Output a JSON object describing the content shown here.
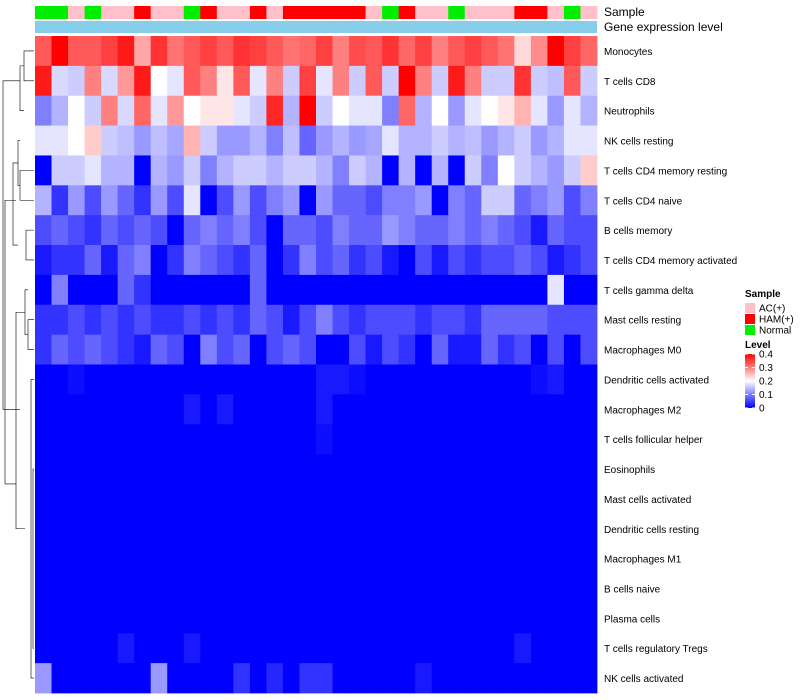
{
  "chart_data": {
    "type": "heatmap",
    "title": "",
    "annotation_tracks": [
      "Sample",
      "Gene expression level"
    ],
    "rows": [
      "Monocytes",
      "T cells CD8",
      "Neutrophils",
      "NK cells resting",
      "T cells CD4 memory resting",
      "T cells CD4 naive",
      "B cells memory",
      "T cells CD4 memory activated",
      "T cells gamma delta",
      "Mast cells resting",
      "Macrophages M0",
      "Dendritic cells activated",
      "Macrophages M2",
      "T cells follicular helper",
      "Eosinophils",
      "Mast cells activated",
      "Dendritic cells resting",
      "Macrophages M1",
      "B cells naive",
      "Plasma cells",
      "T cells regulatory  Tregs",
      "NK cells activated"
    ],
    "sample_groups": [
      "Normal",
      "Normal",
      "AC(+)",
      "Normal",
      "AC(+)",
      "AC(+)",
      "HAM(+)",
      "AC(+)",
      "AC(+)",
      "Normal",
      "HAM(+)",
      "AC(+)",
      "AC(+)",
      "HAM(+)",
      "AC(+)",
      "HAM(+)",
      "HAM(+)",
      "HAM(+)",
      "HAM(+)",
      "HAM(+)",
      "AC(+)",
      "Normal",
      "HAM(+)",
      "AC(+)",
      "AC(+)",
      "Normal",
      "AC(+)",
      "AC(+)",
      "AC(+)",
      "HAM(+)",
      "HAM(+)",
      "AC(+)",
      "Normal",
      "AC(+)"
    ],
    "values": [
      [
        0.33,
        0.4,
        0.33,
        0.33,
        0.35,
        0.38,
        0.27,
        0.36,
        0.31,
        0.33,
        0.35,
        0.33,
        0.36,
        0.35,
        0.33,
        0.31,
        0.32,
        0.35,
        0.3,
        0.34,
        0.33,
        0.36,
        0.32,
        0.35,
        0.3,
        0.33,
        0.35,
        0.33,
        0.31,
        0.23,
        0.29,
        0.4,
        0.35,
        0.32
      ],
      [
        0.38,
        0.17,
        0.16,
        0.3,
        0.17,
        0.28,
        0.38,
        0.2,
        0.18,
        0.33,
        0.3,
        0.22,
        0.33,
        0.18,
        0.3,
        0.16,
        0.35,
        0.18,
        0.3,
        0.16,
        0.33,
        0.16,
        0.4,
        0.3,
        0.16,
        0.38,
        0.3,
        0.16,
        0.16,
        0.36,
        0.16,
        0.15,
        0.33,
        0.16
      ],
      [
        0.1,
        0.14,
        0.2,
        0.16,
        0.3,
        0.17,
        0.32,
        0.18,
        0.28,
        0.2,
        0.22,
        0.22,
        0.18,
        0.16,
        0.37,
        0.14,
        0.42,
        0.16,
        0.2,
        0.18,
        0.18,
        0.1,
        0.32,
        0.14,
        0.2,
        0.12,
        0.18,
        0.2,
        0.22,
        0.26,
        0.18,
        0.12,
        0.18,
        0.14
      ],
      [
        0.18,
        0.18,
        0.2,
        0.24,
        0.16,
        0.15,
        0.12,
        0.15,
        0.13,
        0.26,
        0.16,
        0.12,
        0.12,
        0.14,
        0.1,
        0.15,
        0.08,
        0.12,
        0.14,
        0.12,
        0.13,
        0.18,
        0.14,
        0.14,
        0.16,
        0.14,
        0.15,
        0.12,
        0.14,
        0.16,
        0.12,
        0.14,
        0.18,
        0.18
      ],
      [
        0.0,
        0.16,
        0.16,
        0.18,
        0.14,
        0.14,
        0.0,
        0.14,
        0.12,
        0.16,
        0.1,
        0.14,
        0.16,
        0.16,
        0.14,
        0.16,
        0.16,
        0.14,
        0.1,
        0.16,
        0.14,
        0.0,
        0.14,
        0.0,
        0.14,
        0.0,
        0.16,
        0.1,
        0.2,
        0.16,
        0.14,
        0.12,
        0.16,
        0.24
      ],
      [
        0.14,
        0.04,
        0.12,
        0.06,
        0.12,
        0.08,
        0.04,
        0.12,
        0.06,
        0.18,
        0.0,
        0.06,
        0.12,
        0.06,
        0.1,
        0.12,
        0.0,
        0.12,
        0.08,
        0.08,
        0.06,
        0.1,
        0.1,
        0.12,
        0.0,
        0.1,
        0.08,
        0.16,
        0.16,
        0.08,
        0.1,
        0.12,
        0.06,
        0.1
      ],
      [
        0.06,
        0.08,
        0.06,
        0.04,
        0.08,
        0.06,
        0.08,
        0.06,
        0.0,
        0.08,
        0.1,
        0.08,
        0.1,
        0.06,
        0.0,
        0.08,
        0.08,
        0.06,
        0.1,
        0.08,
        0.08,
        0.12,
        0.1,
        0.08,
        0.08,
        0.1,
        0.08,
        0.1,
        0.08,
        0.06,
        0.02,
        0.08,
        0.06,
        0.06
      ],
      [
        0.02,
        0.04,
        0.04,
        0.08,
        0.02,
        0.08,
        0.1,
        0.0,
        0.04,
        0.1,
        0.08,
        0.06,
        0.04,
        0.08,
        0.0,
        0.04,
        0.1,
        0.06,
        0.08,
        0.04,
        0.06,
        0.02,
        0.0,
        0.06,
        0.02,
        0.06,
        0.04,
        0.06,
        0.06,
        0.08,
        0.06,
        0.02,
        0.04,
        0.06
      ],
      [
        0.0,
        0.1,
        0.0,
        0.0,
        0.0,
        0.08,
        0.04,
        0.0,
        0.0,
        0.0,
        0.0,
        0.0,
        0.0,
        0.08,
        0.0,
        0.0,
        0.0,
        0.0,
        0.0,
        0.0,
        0.0,
        0.0,
        0.0,
        0.0,
        0.0,
        0.0,
        0.0,
        0.0,
        0.0,
        0.0,
        0.0,
        0.18,
        0.0,
        0.0
      ],
      [
        0.04,
        0.04,
        0.06,
        0.04,
        0.06,
        0.04,
        0.06,
        0.04,
        0.04,
        0.06,
        0.04,
        0.06,
        0.04,
        0.08,
        0.06,
        0.02,
        0.06,
        0.1,
        0.06,
        0.04,
        0.06,
        0.06,
        0.06,
        0.04,
        0.06,
        0.06,
        0.04,
        0.08,
        0.08,
        0.08,
        0.08,
        0.06,
        0.06,
        0.06
      ],
      [
        0.04,
        0.08,
        0.06,
        0.08,
        0.06,
        0.04,
        0.02,
        0.08,
        0.06,
        0.0,
        0.1,
        0.06,
        0.08,
        0.0,
        0.06,
        0.08,
        0.06,
        0.0,
        0.0,
        0.06,
        0.02,
        0.06,
        0.04,
        0.0,
        0.08,
        0.02,
        0.02,
        0.08,
        0.04,
        0.06,
        0.0,
        0.06,
        0.0,
        0.06
      ],
      [
        0.0,
        0.0,
        0.01,
        0.0,
        0.0,
        0.0,
        0.0,
        0.0,
        0.0,
        0.0,
        0.0,
        0.0,
        0.0,
        0.0,
        0.0,
        0.0,
        0.0,
        0.02,
        0.02,
        0.01,
        0.0,
        0.0,
        0.0,
        0.0,
        0.0,
        0.0,
        0.0,
        0.0,
        0.0,
        0.0,
        0.01,
        0.02,
        0.0,
        0.0
      ],
      [
        0.0,
        0.0,
        0.0,
        0.0,
        0.0,
        0.0,
        0.0,
        0.0,
        0.0,
        0.02,
        0.0,
        0.02,
        0.0,
        0.0,
        0.0,
        0.0,
        0.0,
        0.02,
        0.0,
        0.0,
        0.0,
        0.0,
        0.0,
        0.0,
        0.0,
        0.0,
        0.0,
        0.0,
        0.0,
        0.0,
        0.0,
        0.0,
        0.0,
        0.0
      ],
      [
        0.0,
        0.0,
        0.0,
        0.0,
        0.0,
        0.0,
        0.0,
        0.0,
        0.0,
        0.0,
        0.0,
        0.0,
        0.0,
        0.0,
        0.0,
        0.0,
        0.0,
        0.01,
        0.0,
        0.0,
        0.0,
        0.0,
        0.0,
        0.0,
        0.0,
        0.0,
        0.0,
        0.0,
        0.0,
        0.0,
        0.0,
        0.0,
        0.0,
        0.0
      ],
      [
        0.0,
        0.0,
        0.0,
        0.0,
        0.0,
        0.0,
        0.0,
        0.0,
        0.0,
        0.0,
        0.0,
        0.0,
        0.0,
        0.0,
        0.0,
        0.0,
        0.0,
        0.0,
        0.0,
        0.0,
        0.0,
        0.0,
        0.0,
        0.0,
        0.0,
        0.0,
        0.0,
        0.0,
        0.0,
        0.0,
        0.0,
        0.0,
        0.0,
        0.0
      ],
      [
        0.0,
        0.0,
        0.0,
        0.0,
        0.0,
        0.0,
        0.0,
        0.0,
        0.0,
        0.0,
        0.0,
        0.0,
        0.0,
        0.0,
        0.0,
        0.0,
        0.0,
        0.0,
        0.0,
        0.0,
        0.0,
        0.0,
        0.0,
        0.0,
        0.0,
        0.0,
        0.0,
        0.0,
        0.0,
        0.0,
        0.0,
        0.0,
        0.0,
        0.0
      ],
      [
        0.0,
        0.0,
        0.0,
        0.0,
        0.0,
        0.0,
        0.0,
        0.0,
        0.0,
        0.0,
        0.0,
        0.0,
        0.0,
        0.0,
        0.0,
        0.0,
        0.0,
        0.0,
        0.0,
        0.0,
        0.0,
        0.0,
        0.0,
        0.0,
        0.0,
        0.0,
        0.0,
        0.0,
        0.0,
        0.0,
        0.0,
        0.0,
        0.0,
        0.0
      ],
      [
        0.0,
        0.0,
        0.0,
        0.0,
        0.0,
        0.0,
        0.0,
        0.0,
        0.0,
        0.0,
        0.0,
        0.0,
        0.0,
        0.0,
        0.0,
        0.0,
        0.0,
        0.0,
        0.0,
        0.0,
        0.0,
        0.0,
        0.0,
        0.0,
        0.0,
        0.0,
        0.0,
        0.0,
        0.0,
        0.0,
        0.0,
        0.0,
        0.0,
        0.0
      ],
      [
        0.0,
        0.0,
        0.0,
        0.0,
        0.0,
        0.0,
        0.0,
        0.0,
        0.0,
        0.0,
        0.0,
        0.0,
        0.0,
        0.0,
        0.0,
        0.0,
        0.0,
        0.0,
        0.0,
        0.0,
        0.0,
        0.0,
        0.0,
        0.0,
        0.0,
        0.0,
        0.0,
        0.0,
        0.0,
        0.0,
        0.0,
        0.0,
        0.0,
        0.0
      ],
      [
        0.0,
        0.0,
        0.0,
        0.0,
        0.0,
        0.0,
        0.0,
        0.0,
        0.0,
        0.0,
        0.0,
        0.0,
        0.0,
        0.0,
        0.0,
        0.0,
        0.0,
        0.0,
        0.0,
        0.0,
        0.0,
        0.0,
        0.0,
        0.0,
        0.0,
        0.0,
        0.0,
        0.0,
        0.0,
        0.0,
        0.0,
        0.0,
        0.0,
        0.0
      ],
      [
        0.0,
        0.0,
        0.0,
        0.0,
        0.0,
        0.02,
        0.0,
        0.0,
        0.0,
        0.02,
        0.0,
        0.0,
        0.0,
        0.0,
        0.0,
        0.0,
        0.0,
        0.0,
        0.0,
        0.0,
        0.0,
        0.0,
        0.0,
        0.0,
        0.0,
        0.0,
        0.0,
        0.0,
        0.0,
        0.02,
        0.0,
        0.0,
        0.0,
        0.0
      ],
      [
        0.12,
        0.0,
        0.0,
        0.0,
        0.0,
        0.0,
        0.0,
        0.12,
        0.0,
        0.0,
        0.0,
        0.0,
        0.04,
        0.0,
        0.03,
        0.0,
        0.04,
        0.04,
        0.0,
        0.0,
        0.0,
        0.0,
        0.0,
        0.02,
        0.0,
        0.0,
        0.0,
        0.0,
        0.0,
        0.0,
        0.0,
        0.0,
        0.0,
        0.0
      ]
    ],
    "legend": {
      "sample": {
        "title": "Sample",
        "entries": [
          {
            "label": "AC(+)",
            "color": "#ffc0cb"
          },
          {
            "label": "HAM(+)",
            "color": "#ff0000"
          },
          {
            "label": "Normal",
            "color": "#00ee00"
          }
        ]
      },
      "level": {
        "title": "Level",
        "ticks": [
          "0",
          "0.1",
          "0.2",
          "0.3",
          "0.4"
        ],
        "range": [
          0,
          0.4
        ]
      }
    },
    "colors": {
      "low": "#0000ff",
      "mid": "#ffffff",
      "high": "#ff0000",
      "expression_track": "#87ceeb"
    }
  }
}
